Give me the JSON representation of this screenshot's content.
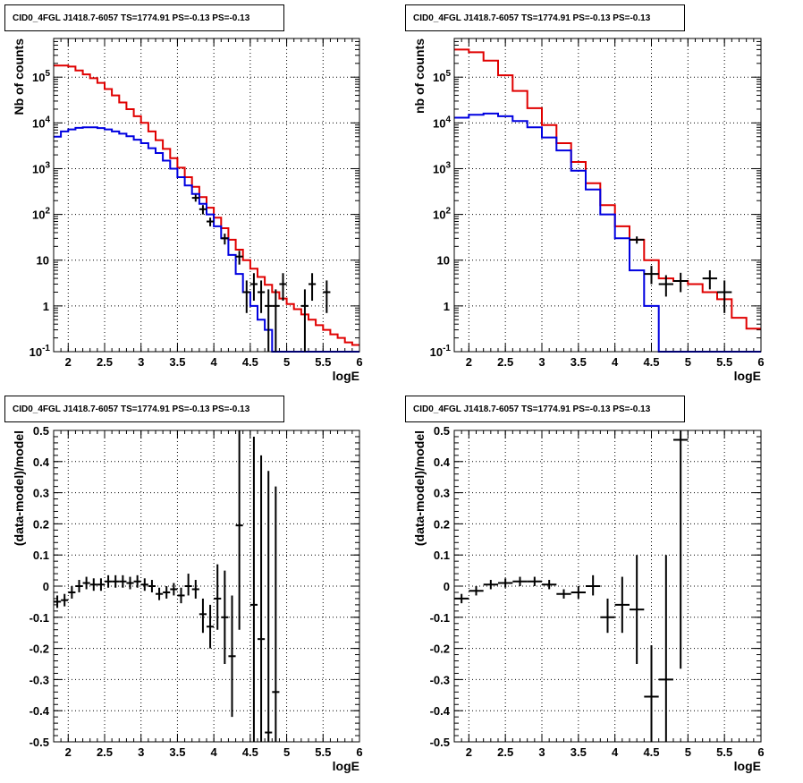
{
  "chart_data": [
    {
      "type": "step-histogram",
      "title": "CID0_4FGL J1418.7-6057 TS=1774.91 PS=-0.13 PS=-0.13",
      "xlabel": "logE",
      "ylabel": "Nb of counts",
      "xlim": [
        1.8,
        6.0
      ],
      "ylim": [
        0.1,
        700000
      ],
      "yscale": "log",
      "grid": true,
      "x_ticks": [
        "2",
        "2.5",
        "3",
        "3.5",
        "4",
        "4.5",
        "5",
        "5.5",
        "6"
      ],
      "y_ticks": [
        "10^-1",
        "1",
        "10",
        "10^2",
        "10^3",
        "10^4",
        "10^5"
      ],
      "bin_edges": [
        1.8,
        1.9,
        2.0,
        2.1,
        2.2,
        2.3,
        2.4,
        2.5,
        2.6,
        2.7,
        2.8,
        2.9,
        3.0,
        3.1,
        3.2,
        3.3,
        3.4,
        3.5,
        3.6,
        3.7,
        3.8,
        3.9,
        4.0,
        4.1,
        4.2,
        4.3,
        4.4,
        4.5,
        4.6,
        4.7,
        4.8,
        4.9,
        5.0,
        5.1,
        5.2,
        5.3,
        5.4,
        5.5,
        5.6,
        5.7,
        5.8,
        5.9,
        6.0
      ],
      "series": [
        {
          "color": "#e00000",
          "values": [
            180000,
            180000,
            170000,
            140000,
            115000,
            95000,
            75000,
            55000,
            40000,
            28000,
            20000,
            14000,
            10000,
            6500,
            4200,
            2700,
            1700,
            1050,
            650,
            400,
            240,
            140,
            85,
            50,
            28,
            17,
            10,
            6.5,
            4.3,
            2.9,
            2.0,
            1.45,
            1.1,
            0.85,
            0.65,
            0.5,
            0.38,
            0.3,
            0.24,
            0.2,
            0.16,
            0.14
          ]
        },
        {
          "color": "#0000e0",
          "values": [
            5000,
            6500,
            7200,
            7800,
            8000,
            8000,
            7700,
            7200,
            6500,
            5800,
            5100,
            4300,
            3600,
            2800,
            2200,
            1500,
            1000,
            650,
            430,
            280,
            170,
            100,
            55,
            30,
            13,
            5,
            2,
            1,
            0.5,
            0.3,
            0.1,
            0.1,
            0.1,
            0.1,
            0.1,
            0.1,
            0.1,
            0.1,
            0.1,
            0.1,
            0.1,
            0.1
          ]
        }
      ],
      "data_points": [
        {
          "x": 3.75,
          "y": 230,
          "lo": 190,
          "hi": 270
        },
        {
          "x": 3.85,
          "y": 130,
          "lo": 100,
          "hi": 160
        },
        {
          "x": 3.95,
          "y": 70,
          "lo": 55,
          "hi": 85
        },
        {
          "x": 4.15,
          "y": 30,
          "lo": 22,
          "hi": 38
        },
        {
          "x": 4.35,
          "y": 12,
          "lo": 8,
          "hi": 16
        },
        {
          "x": 4.45,
          "y": 2,
          "lo": 0.7,
          "hi": 3.6
        },
        {
          "x": 4.55,
          "y": 3,
          "lo": 1.3,
          "hi": 5.2
        },
        {
          "x": 4.65,
          "y": 2,
          "lo": 0.7,
          "hi": 3.6
        },
        {
          "x": 4.75,
          "y": 1,
          "lo": 0.1,
          "hi": 2.3
        },
        {
          "x": 4.85,
          "y": 1,
          "lo": 0.1,
          "hi": 2.3
        },
        {
          "x": 4.95,
          "y": 3,
          "lo": 1.3,
          "hi": 5.2
        },
        {
          "x": 5.25,
          "y": 1,
          "lo": 0.1,
          "hi": 2.3
        },
        {
          "x": 5.35,
          "y": 3,
          "lo": 1.3,
          "hi": 5.2
        },
        {
          "x": 5.55,
          "y": 2,
          "lo": 0.7,
          "hi": 3.6
        }
      ]
    },
    {
      "type": "step-histogram",
      "title": "CID0_4FGL J1418.7-6057 TS=1774.91 PS=-0.13 PS=-0.13",
      "xlabel": "logE",
      "ylabel": "nb of counts",
      "xlim": [
        1.8,
        6.0
      ],
      "ylim": [
        0.1,
        700000
      ],
      "yscale": "log",
      "grid": true,
      "x_ticks": [
        "2",
        "2.5",
        "3",
        "3.5",
        "4",
        "4.5",
        "5",
        "5.5",
        "6"
      ],
      "y_ticks": [
        "10^-1",
        "1",
        "10",
        "10^2",
        "10^3",
        "10^4",
        "10^5"
      ],
      "bin_edges": [
        1.8,
        2.0,
        2.2,
        2.4,
        2.6,
        2.8,
        3.0,
        3.2,
        3.4,
        3.6,
        3.8,
        4.0,
        4.2,
        4.4,
        4.6,
        4.8,
        5.0,
        5.2,
        5.4,
        5.6,
        5.8,
        6.0
      ],
      "series": [
        {
          "color": "#e00000",
          "values": [
            400000,
            350000,
            230000,
            110000,
            50000,
            21000,
            9000,
            3600,
            1400,
            480,
            160,
            55,
            28,
            10,
            4,
            3.5,
            3.0,
            2.0,
            1.4,
            0.55,
            0.32
          ]
        },
        {
          "color": "#0000e0",
          "values": [
            13000,
            15000,
            16000,
            14000,
            11000,
            8000,
            4800,
            2500,
            900,
            350,
            100,
            30,
            6,
            1,
            0.1,
            0.1,
            0.1,
            0.1,
            0.1,
            0.1,
            0.1
          ]
        }
      ],
      "data_points": [
        {
          "x": 4.3,
          "y": 28,
          "lo": 23,
          "hi": 33
        },
        {
          "x": 4.5,
          "y": 5,
          "lo": 3,
          "hi": 7.5
        },
        {
          "x": 4.7,
          "y": 3,
          "lo": 1.6,
          "hi": 4.7
        },
        {
          "x": 4.9,
          "y": 3.5,
          "lo": 2,
          "hi": 5.3
        },
        {
          "x": 5.3,
          "y": 4,
          "lo": 2.3,
          "hi": 6
        },
        {
          "x": 5.5,
          "y": 2,
          "lo": 0.7,
          "hi": 3.6
        }
      ]
    },
    {
      "type": "scatter-errorbar",
      "title": "CID0_4FGL J1418.7-6057 TS=1774.91 PS=-0.13 PS=-0.13",
      "xlabel": "logE",
      "ylabel": "(data-model)/model",
      "xlim": [
        1.8,
        6.0
      ],
      "ylim": [
        -0.5,
        0.5
      ],
      "grid": true,
      "x_ticks": [
        "2",
        "2.5",
        "3",
        "3.5",
        "4",
        "4.5",
        "5",
        "5.5",
        "6"
      ],
      "y_ticks": [
        "-0.5",
        "-0.4",
        "-0.3",
        "-0.2",
        "-0.1",
        "0",
        "0.1",
        "0.2",
        "0.3",
        "0.4",
        "0.5"
      ],
      "xerr": 0.05,
      "data_points": [
        {
          "x": 1.85,
          "y": -0.05,
          "lo": -0.07,
          "hi": -0.03
        },
        {
          "x": 1.95,
          "y": -0.045,
          "lo": -0.065,
          "hi": -0.025
        },
        {
          "x": 2.05,
          "y": -0.02,
          "lo": -0.04,
          "hi": 0.0
        },
        {
          "x": 2.15,
          "y": 0.0,
          "lo": -0.02,
          "hi": 0.02
        },
        {
          "x": 2.25,
          "y": 0.01,
          "lo": -0.01,
          "hi": 0.03
        },
        {
          "x": 2.35,
          "y": 0.005,
          "lo": -0.015,
          "hi": 0.025
        },
        {
          "x": 2.45,
          "y": 0.005,
          "lo": -0.015,
          "hi": 0.025
        },
        {
          "x": 2.55,
          "y": 0.015,
          "lo": -0.005,
          "hi": 0.035
        },
        {
          "x": 2.65,
          "y": 0.015,
          "lo": -0.005,
          "hi": 0.035
        },
        {
          "x": 2.75,
          "y": 0.015,
          "lo": -0.005,
          "hi": 0.035
        },
        {
          "x": 2.85,
          "y": 0.01,
          "lo": -0.01,
          "hi": 0.03
        },
        {
          "x": 2.95,
          "y": 0.015,
          "lo": -0.005,
          "hi": 0.035
        },
        {
          "x": 3.05,
          "y": 0.005,
          "lo": -0.015,
          "hi": 0.025
        },
        {
          "x": 3.15,
          "y": 0.0,
          "lo": -0.02,
          "hi": 0.02
        },
        {
          "x": 3.25,
          "y": -0.025,
          "lo": -0.045,
          "hi": -0.005
        },
        {
          "x": 3.35,
          "y": -0.02,
          "lo": -0.04,
          "hi": 0.0
        },
        {
          "x": 3.45,
          "y": -0.01,
          "lo": -0.03,
          "hi": 0.01
        },
        {
          "x": 3.55,
          "y": -0.03,
          "lo": -0.055,
          "hi": -0.005
        },
        {
          "x": 3.65,
          "y": 0.0,
          "lo": -0.03,
          "hi": 0.04
        },
        {
          "x": 3.75,
          "y": -0.01,
          "lo": -0.04,
          "hi": 0.02
        },
        {
          "x": 3.85,
          "y": -0.09,
          "lo": -0.15,
          "hi": -0.04
        },
        {
          "x": 3.95,
          "y": -0.13,
          "lo": -0.2,
          "hi": -0.06
        },
        {
          "x": 4.05,
          "y": -0.04,
          "lo": -0.14,
          "hi": 0.07
        },
        {
          "x": 4.15,
          "y": -0.1,
          "lo": -0.25,
          "hi": 0.05
        },
        {
          "x": 4.25,
          "y": -0.225,
          "lo": -0.42,
          "hi": -0.03
        },
        {
          "x": 4.35,
          "y": 0.195,
          "lo": -0.14,
          "hi": 0.5
        },
        {
          "x": 4.55,
          "y": -0.06,
          "lo": -0.5,
          "hi": 0.48
        },
        {
          "x": 4.65,
          "y": -0.17,
          "lo": -0.5,
          "hi": 0.42
        },
        {
          "x": 4.75,
          "y": -0.47,
          "lo": -0.5,
          "hi": 0.37
        },
        {
          "x": 4.85,
          "y": -0.34,
          "lo": -0.5,
          "hi": 0.32
        }
      ]
    },
    {
      "type": "scatter-errorbar",
      "title": "CID0_4FGL J1418.7-6057 TS=1774.91 PS=-0.13 PS=-0.13",
      "xlabel": "logE",
      "ylabel": "(data-model)/model",
      "xlim": [
        1.8,
        6.0
      ],
      "ylim": [
        -0.5,
        0.5
      ],
      "grid": true,
      "x_ticks": [
        "2",
        "2.5",
        "3",
        "3.5",
        "4",
        "4.5",
        "5",
        "5.5",
        "6"
      ],
      "y_ticks": [
        "-0.5",
        "-0.4",
        "-0.3",
        "-0.2",
        "-0.1",
        "0",
        "0.1",
        "0.2",
        "0.3",
        "0.4",
        "0.5"
      ],
      "xerr": 0.1,
      "data_points": [
        {
          "x": 1.9,
          "y": -0.04,
          "lo": -0.055,
          "hi": -0.025
        },
        {
          "x": 2.1,
          "y": -0.015,
          "lo": -0.03,
          "hi": 0.0
        },
        {
          "x": 2.3,
          "y": 0.005,
          "lo": -0.01,
          "hi": 0.02
        },
        {
          "x": 2.5,
          "y": 0.01,
          "lo": -0.005,
          "hi": 0.025
        },
        {
          "x": 2.7,
          "y": 0.015,
          "lo": 0.0,
          "hi": 0.03
        },
        {
          "x": 2.9,
          "y": 0.015,
          "lo": 0.0,
          "hi": 0.03
        },
        {
          "x": 3.1,
          "y": 0.005,
          "lo": -0.01,
          "hi": 0.02
        },
        {
          "x": 3.3,
          "y": -0.025,
          "lo": -0.04,
          "hi": -0.01
        },
        {
          "x": 3.5,
          "y": -0.02,
          "lo": -0.04,
          "hi": 0.0
        },
        {
          "x": 3.7,
          "y": 0.0,
          "lo": -0.03,
          "hi": 0.035
        },
        {
          "x": 3.9,
          "y": -0.1,
          "lo": -0.15,
          "hi": -0.04
        },
        {
          "x": 4.1,
          "y": -0.06,
          "lo": -0.15,
          "hi": 0.03
        },
        {
          "x": 4.3,
          "y": -0.075,
          "lo": -0.25,
          "hi": 0.1
        },
        {
          "x": 4.5,
          "y": -0.355,
          "lo": -0.5,
          "hi": -0.19
        },
        {
          "x": 4.7,
          "y": -0.3,
          "lo": -0.5,
          "hi": 0.1
        },
        {
          "x": 4.9,
          "y": 0.47,
          "lo": -0.265,
          "hi": 0.5
        }
      ]
    }
  ]
}
